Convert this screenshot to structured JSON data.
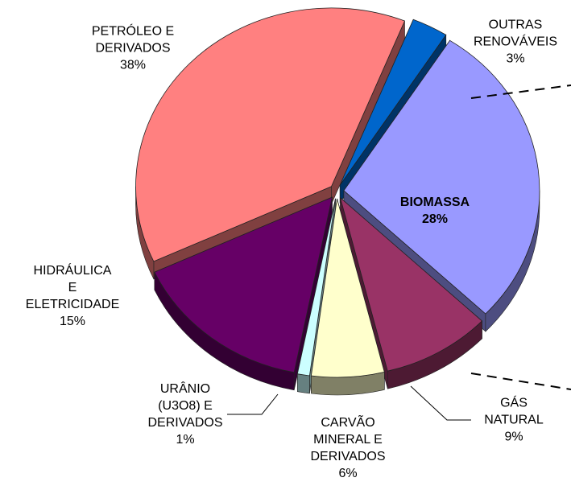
{
  "chart_data": {
    "type": "pie",
    "categories": [
      "OUTRAS\nRENOVÁVEIS",
      "BIOMASSA",
      "GÁS\nNATURAL",
      "CARVÃO\nMINERAL E\nDERIVADOS",
      "URÂNIO\n(U3O8) E\nDERIVADOS",
      "HIDRÁULICA\nE\nELETRICIDADE",
      "PETRÓLEO E\nDERIVADOS"
    ],
    "values": [
      3,
      28,
      9,
      6,
      1,
      15,
      38
    ],
    "value_labels": [
      "3%",
      "28%",
      "9%",
      "6%",
      "1%",
      "15%",
      "38%"
    ],
    "colors": [
      "#0066CC",
      "#9999FF",
      "#993366",
      "#FFFFCC",
      "#CCFFFF",
      "#660066",
      "#FF8080"
    ]
  }
}
